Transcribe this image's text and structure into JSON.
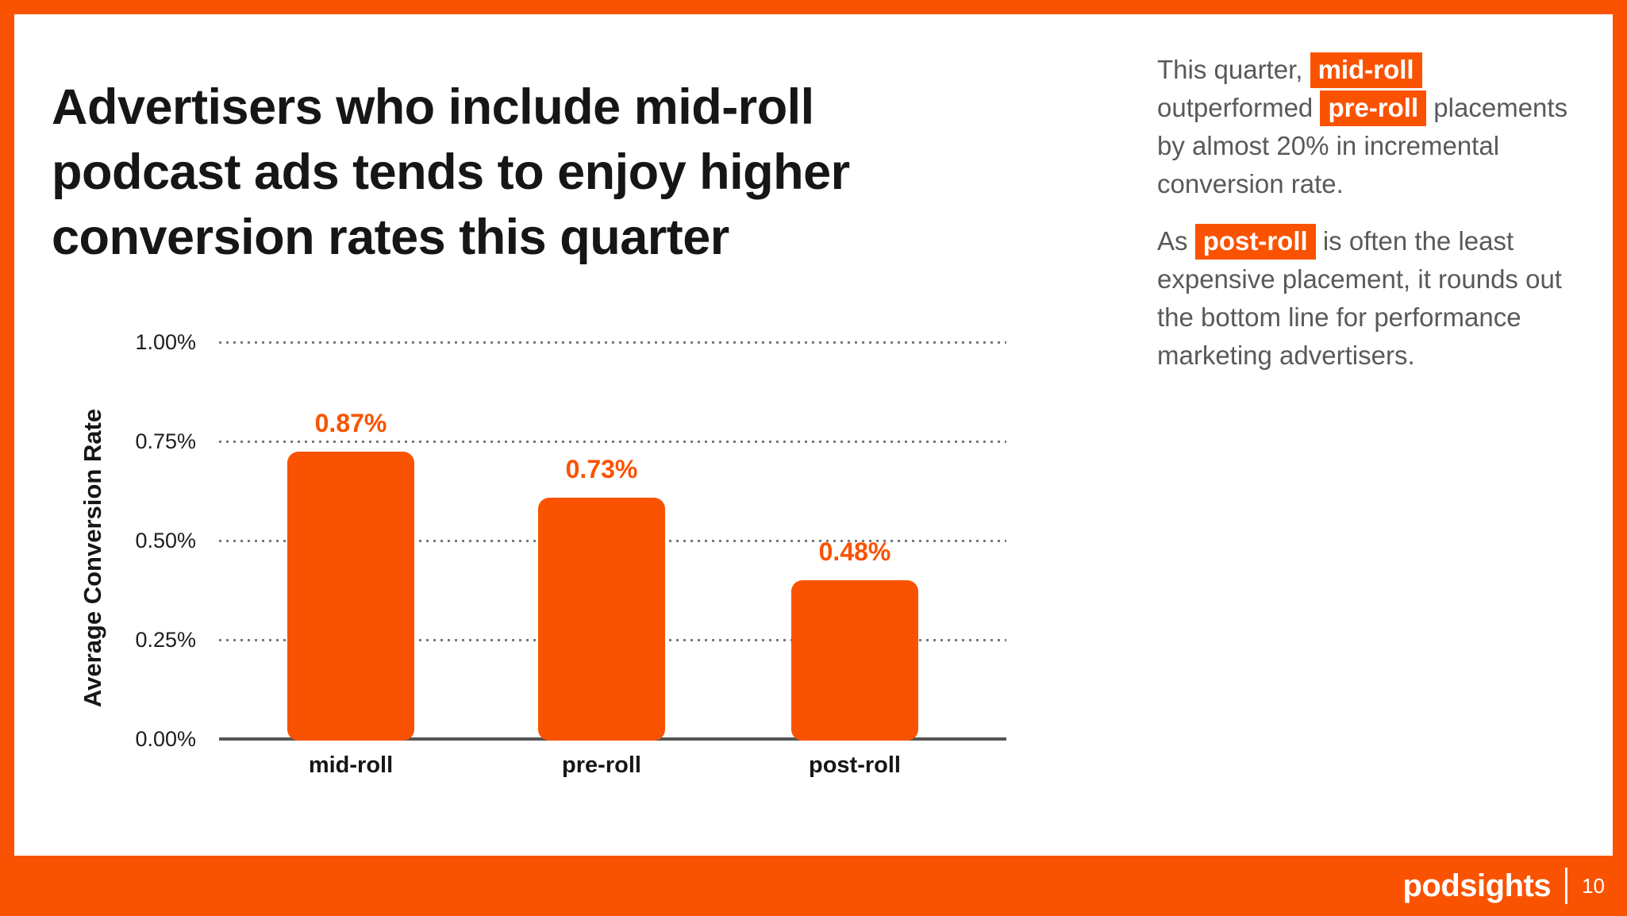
{
  "colors": {
    "accent_orange": "#F95301",
    "title_text": "#161616",
    "body_text": "#58595B",
    "gridline_gray": "#7A7A7A",
    "axis_gray": "#555555"
  },
  "title_lines": [
    "Advertisers who include mid-roll",
    "podcast ads tends to enjoy higher",
    "conversion rates this quarter"
  ],
  "chart_data": {
    "type": "bar",
    "categories": [
      "mid-roll",
      "pre-roll",
      "post-roll"
    ],
    "values": [
      0.87,
      0.73,
      0.48
    ],
    "data_labels": [
      "0.87%",
      "0.73%",
      "0.48%"
    ],
    "title": "",
    "xlabel": "",
    "ylabel": "Average Conversion Rate",
    "yticks": [
      "1.00%",
      "0.75%",
      "0.50%",
      "0.25%",
      "0.00%"
    ],
    "ylim": [
      0,
      1.0
    ],
    "grid": "horizontal dotted",
    "legend": "none",
    "bar_color": "#F95301",
    "visual_top_fraction": [
      0.728,
      0.612,
      0.404
    ]
  },
  "commentary": {
    "p1": [
      {
        "text": "This quarter, "
      },
      {
        "text": "mid-roll",
        "highlight": true
      },
      {
        "text": " outperformed "
      },
      {
        "text": "pre-roll",
        "highlight": true
      },
      {
        "text": " placements by almost 20% in incremental conversion rate."
      }
    ],
    "p2": [
      {
        "text": "As "
      },
      {
        "text": "post-roll",
        "highlight": true
      },
      {
        "text": " is often the least expensive placement, it rounds out the bottom line for performance marketing advertisers."
      }
    ]
  },
  "footer": {
    "brand": "podsights",
    "page_number": "10"
  }
}
